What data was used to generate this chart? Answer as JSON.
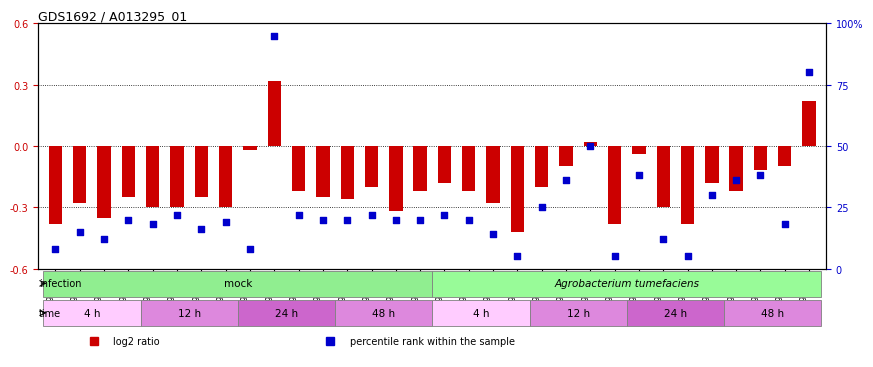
{
  "title": "GDS1692 / A013295_01",
  "samples": [
    "GSM94186",
    "GSM94187",
    "GSM94188",
    "GSM94201",
    "GSM94189",
    "GSM94190",
    "GSM94191",
    "GSM94192",
    "GSM94193",
    "GSM94194",
    "GSM94195",
    "GSM94196",
    "GSM94197",
    "GSM94198",
    "GSM94199",
    "GSM94200",
    "GSM94076",
    "GSM94149",
    "GSM94150",
    "GSM94151",
    "GSM94152",
    "GSM94153",
    "GSM94154",
    "GSM94158",
    "GSM94159",
    "GSM94179",
    "GSM94180",
    "GSM94181",
    "GSM94182",
    "GSM94183",
    "GSM94184",
    "GSM94185"
  ],
  "log2_ratio": [
    -0.38,
    -0.28,
    -0.35,
    -0.25,
    -0.3,
    -0.3,
    -0.25,
    -0.3,
    -0.02,
    0.32,
    -0.22,
    -0.25,
    -0.26,
    -0.2,
    -0.32,
    -0.22,
    -0.18,
    -0.22,
    -0.28,
    -0.42,
    -0.2,
    -0.1,
    0.02,
    -0.38,
    -0.04,
    -0.3,
    -0.38,
    -0.18,
    -0.22,
    -0.12,
    -0.1,
    0.22
  ],
  "blue_dot_y": [
    8,
    15,
    12,
    20,
    18,
    22,
    16,
    19,
    8,
    95,
    22,
    20,
    20,
    22,
    20,
    20,
    22,
    20,
    14,
    5,
    25,
    36,
    50,
    5,
    38,
    12,
    5,
    30,
    36,
    38,
    18,
    80
  ],
  "blue_outlier_idx": 9,
  "blue_outlier_val": 0.58,
  "ylim": [
    -0.6,
    0.6
  ],
  "yticks_left": [
    -0.6,
    -0.3,
    0.0,
    0.3,
    0.6
  ],
  "yticks_right": [
    0,
    25,
    50,
    75,
    100
  ],
  "bar_color": "#cc0000",
  "dot_color": "#0000cc",
  "infection_groups": [
    {
      "label": "mock",
      "start": 0,
      "end": 15,
      "color": "#90ee90"
    },
    {
      "label": "Agrobacterium tumefaciens",
      "start": 16,
      "end": 31,
      "color": "#98fb98"
    }
  ],
  "time_groups": [
    {
      "label": "4 h",
      "start": 0,
      "end": 3,
      "color": "#ffaaff"
    },
    {
      "label": "12 h",
      "start": 4,
      "end": 7,
      "color": "#ee88ee"
    },
    {
      "label": "24 h",
      "start": 8,
      "end": 11,
      "color": "#dd66dd"
    },
    {
      "label": "48 h",
      "start": 12,
      "end": 15,
      "color": "#ee88ee"
    },
    {
      "label": "4 h",
      "start": 16,
      "end": 19,
      "color": "#ffaaff"
    },
    {
      "label": "12 h",
      "start": 20,
      "end": 23,
      "color": "#ee88ee"
    },
    {
      "label": "24 h",
      "start": 24,
      "end": 27,
      "color": "#dd66dd"
    },
    {
      "label": "48 h",
      "start": 28,
      "end": 31,
      "color": "#ee88ee"
    }
  ],
  "legend_items": [
    {
      "label": "log2 ratio",
      "color": "#cc0000",
      "marker": "s"
    },
    {
      "label": "percentile rank within the sample",
      "color": "#0000cc",
      "marker": "s"
    }
  ]
}
